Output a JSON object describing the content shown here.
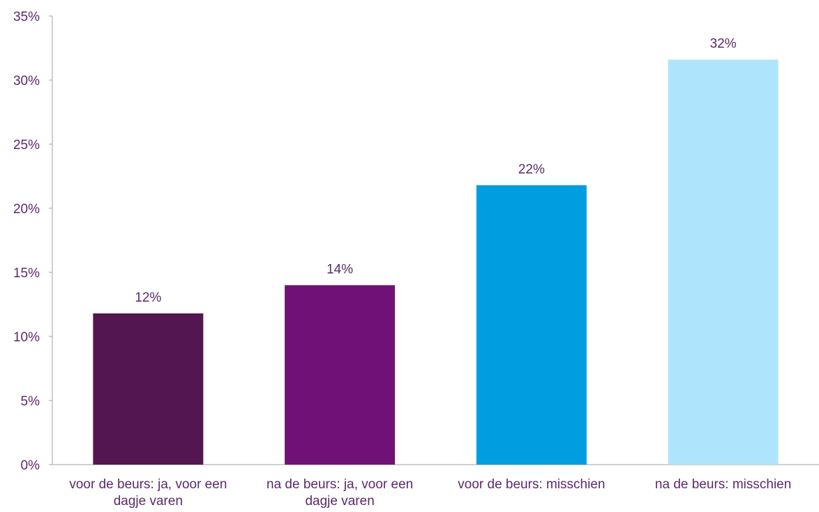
{
  "chart_data": {
    "type": "bar",
    "categories": [
      [
        "voor de beurs: ja, voor een",
        "dagje varen"
      ],
      [
        "na de beurs: ja, voor een",
        "dagje varen"
      ],
      [
        "voor de beurs: misschien"
      ],
      [
        "na de beurs: misschien"
      ]
    ],
    "values": [
      11.8,
      14.0,
      21.8,
      31.6
    ],
    "value_labels": [
      "12%",
      "14%",
      "22%",
      "32%"
    ],
    "bar_colors": [
      "#541651",
      "#701177",
      "#009ee0",
      "#aee5fc"
    ],
    "ylim": [
      0,
      35
    ],
    "yticks": [
      0,
      5,
      10,
      15,
      20,
      25,
      30,
      35
    ],
    "ytick_labels": [
      "0%",
      "5%",
      "10%",
      "15%",
      "20%",
      "25%",
      "30%",
      "35%"
    ],
    "text_color": "#5a2a6a",
    "axis_color": "#a0a0a0",
    "grid": false
  }
}
